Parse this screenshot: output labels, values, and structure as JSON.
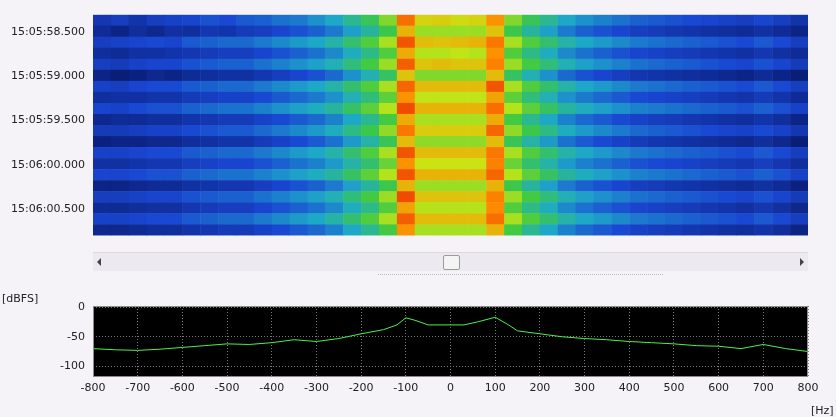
{
  "chart_data": [
    {
      "type": "heatmap",
      "x_bins": [
        -800,
        -760,
        -720,
        -680,
        -640,
        -600,
        -560,
        -520,
        -480,
        -440,
        -400,
        -360,
        -320,
        -280,
        -240,
        -200,
        -160,
        -120,
        -80,
        -40,
        0,
        40,
        80,
        120,
        160,
        200,
        240,
        280,
        320,
        360,
        400,
        440,
        480,
        520,
        560,
        600,
        640,
        680,
        720,
        760,
        800
      ],
      "y_bins": [
        54358.3,
        54358.425,
        54358.55,
        54358.675,
        54358.8,
        54358.925,
        54359.05,
        54359.175,
        54359.3,
        54359.425,
        54359.55,
        54359.675,
        54359.8,
        54359.925,
        54360.05,
        54360.175,
        54360.3,
        54360.425,
        54360.55,
        54360.675,
        54360.8
      ],
      "cells": [
        [
          -72,
          -70,
          -73,
          -70,
          -69,
          -68,
          -66,
          -67,
          -65,
          -64,
          -62,
          -61,
          -58,
          -55,
          -50,
          -45,
          -38,
          -18,
          -30,
          -29,
          -31,
          -30,
          -22,
          -38,
          -45,
          -50,
          -55,
          -58,
          -60,
          -62,
          -64,
          -65,
          -66,
          -67,
          -68,
          -69,
          -70,
          -68,
          -70,
          -73
        ],
        [
          -76,
          -78,
          -75,
          -77,
          -74,
          -75,
          -72,
          -73,
          -71,
          -70,
          -68,
          -66,
          -64,
          -61,
          -56,
          -51,
          -44,
          -26,
          -36,
          -36,
          -36,
          -36,
          -28,
          -44,
          -51,
          -56,
          -61,
          -64,
          -66,
          -68,
          -70,
          -71,
          -72,
          -73,
          -74,
          -75,
          -76,
          -74,
          -76,
          -78
        ],
        [
          -70,
          -69,
          -68,
          -67,
          -68,
          -65,
          -64,
          -63,
          -63,
          -61,
          -59,
          -57,
          -55,
          -52,
          -47,
          -42,
          -35,
          -15,
          -27,
          -28,
          -27,
          -26,
          -19,
          -35,
          -42,
          -47,
          -52,
          -55,
          -57,
          -59,
          -61,
          -62,
          -63,
          -64,
          -65,
          -66,
          -67,
          -65,
          -67,
          -70
        ],
        [
          -75,
          -76,
          -74,
          -74,
          -73,
          -72,
          -71,
          -70,
          -70,
          -68,
          -66,
          -64,
          -62,
          -59,
          -54,
          -49,
          -42,
          -25,
          -34,
          -34,
          -33,
          -34,
          -22,
          -42,
          -49,
          -54,
          -59,
          -62,
          -64,
          -66,
          -68,
          -69,
          -70,
          -71,
          -72,
          -73,
          -74,
          -72,
          -74,
          -76
        ],
        [
          -70,
          -71,
          -69,
          -68,
          -68,
          -66,
          -65,
          -64,
          -64,
          -62,
          -60,
          -58,
          -56,
          -53,
          -48,
          -43,
          -36,
          -16,
          -28,
          -27,
          -28,
          -28,
          -20,
          -36,
          -43,
          -48,
          -53,
          -56,
          -58,
          -60,
          -62,
          -63,
          -64,
          -65,
          -66,
          -67,
          -68,
          -66,
          -68,
          -71
        ],
        [
          -78,
          -80,
          -79,
          -77,
          -78,
          -76,
          -75,
          -74,
          -74,
          -72,
          -70,
          -68,
          -66,
          -63,
          -58,
          -53,
          -46,
          -28,
          -38,
          -38,
          -38,
          -38,
          -27,
          -46,
          -53,
          -58,
          -63,
          -66,
          -68,
          -70,
          -72,
          -73,
          -74,
          -75,
          -76,
          -77,
          -78,
          -76,
          -78,
          -80
        ],
        [
          -69,
          -70,
          -68,
          -67,
          -67,
          -65,
          -64,
          -63,
          -63,
          -61,
          -59,
          -57,
          -55,
          -52,
          -47,
          -42,
          -35,
          -17,
          -27,
          -27,
          -27,
          -27,
          -15,
          -35,
          -42,
          -47,
          -52,
          -55,
          -57,
          -59,
          -61,
          -62,
          -63,
          -64,
          -65,
          -66,
          -67,
          -65,
          -67,
          -70
        ],
        [
          -75,
          -74,
          -74,
          -73,
          -73,
          -71,
          -70,
          -69,
          -69,
          -67,
          -65,
          -63,
          -61,
          -58,
          -53,
          -48,
          -41,
          -22,
          -33,
          -33,
          -33,
          -33,
          -24,
          -41,
          -48,
          -53,
          -58,
          -61,
          -63,
          -65,
          -67,
          -68,
          -69,
          -70,
          -71,
          -72,
          -73,
          -71,
          -73,
          -76
        ],
        [
          -68,
          -69,
          -67,
          -66,
          -66,
          -64,
          -63,
          -62,
          -62,
          -60,
          -58,
          -56,
          -54,
          -51,
          -46,
          -41,
          -34,
          -14,
          -26,
          -26,
          -26,
          -26,
          -18,
          -34,
          -41,
          -46,
          -51,
          -54,
          -56,
          -58,
          -60,
          -61,
          -62,
          -63,
          -64,
          -65,
          -66,
          -64,
          -66,
          -69
        ],
        [
          -77,
          -76,
          -76,
          -75,
          -75,
          -73,
          -72,
          -71,
          -71,
          -69,
          -67,
          -65,
          -63,
          -60,
          -55,
          -50,
          -43,
          -25,
          -35,
          -35,
          -35,
          -35,
          -25,
          -43,
          -50,
          -55,
          -60,
          -63,
          -65,
          -67,
          -69,
          -70,
          -71,
          -72,
          -73,
          -74,
          -75,
          -73,
          -75,
          -78
        ],
        [
          -71,
          -71,
          -70,
          -69,
          -69,
          -67,
          -66,
          -65,
          -65,
          -63,
          -61,
          -59,
          -57,
          -54,
          -49,
          -44,
          -37,
          -19,
          -29,
          -29,
          -29,
          -29,
          -17,
          -37,
          -44,
          -49,
          -54,
          -57,
          -59,
          -61,
          -63,
          -64,
          -65,
          -66,
          -67,
          -68,
          -69,
          -67,
          -69,
          -72
        ],
        [
          -79,
          -78,
          -78,
          -77,
          -77,
          -75,
          -74,
          -73,
          -73,
          -71,
          -69,
          -67,
          -65,
          -62,
          -57,
          -52,
          -45,
          -27,
          -37,
          -37,
          -37,
          -37,
          -27,
          -45,
          -52,
          -57,
          -62,
          -65,
          -67,
          -69,
          -71,
          -72,
          -73,
          -74,
          -75,
          -76,
          -77,
          -75,
          -77,
          -80
        ],
        [
          -69,
          -69,
          -68,
          -67,
          -67,
          -65,
          -64,
          -63,
          -63,
          -61,
          -59,
          -57,
          -55,
          -52,
          -47,
          -42,
          -35,
          -15,
          -27,
          -27,
          -27,
          -27,
          -19,
          -35,
          -42,
          -47,
          -52,
          -55,
          -57,
          -59,
          -61,
          -62,
          -63,
          -64,
          -65,
          -66,
          -67,
          -65,
          -67,
          -70
        ],
        [
          -74,
          -74,
          -73,
          -72,
          -72,
          -70,
          -69,
          -68,
          -68,
          -66,
          -64,
          -62,
          -60,
          -57,
          -52,
          -47,
          -40,
          -22,
          -32,
          -32,
          -32,
          -32,
          -20,
          -40,
          -47,
          -52,
          -57,
          -60,
          -62,
          -64,
          -66,
          -67,
          -68,
          -69,
          -70,
          -71,
          -72,
          -70,
          -72,
          -75
        ],
        [
          -68,
          -68,
          -67,
          -66,
          -66,
          -64,
          -63,
          -62,
          -62,
          -60,
          -58,
          -56,
          -54,
          -51,
          -46,
          -41,
          -34,
          -15,
          -26,
          -26,
          -26,
          -26,
          -17,
          -34,
          -41,
          -46,
          -51,
          -54,
          -56,
          -58,
          -60,
          -61,
          -62,
          -63,
          -64,
          -65,
          -66,
          -64,
          -66,
          -69
        ],
        [
          -78,
          -78,
          -77,
          -76,
          -76,
          -74,
          -73,
          -72,
          -72,
          -70,
          -68,
          -66,
          -64,
          -61,
          -56,
          -51,
          -44,
          -26,
          -36,
          -36,
          -36,
          -36,
          -26,
          -44,
          -51,
          -56,
          -61,
          -64,
          -66,
          -68,
          -70,
          -71,
          -72,
          -73,
          -74,
          -75,
          -76,
          -74,
          -76,
          -79
        ],
        [
          -70,
          -70,
          -69,
          -68,
          -68,
          -66,
          -65,
          -64,
          -64,
          -62,
          -60,
          -58,
          -56,
          -53,
          -48,
          -43,
          -36,
          -14,
          -28,
          -28,
          -28,
          -28,
          -20,
          -36,
          -43,
          -48,
          -53,
          -56,
          -58,
          -60,
          -62,
          -63,
          -64,
          -65,
          -66,
          -67,
          -68,
          -66,
          -68,
          -71
        ],
        [
          -76,
          -76,
          -75,
          -74,
          -74,
          -72,
          -71,
          -70,
          -70,
          -68,
          -66,
          -64,
          -62,
          -59,
          -54,
          -49,
          -42,
          -24,
          -34,
          -34,
          -34,
          -34,
          -21,
          -42,
          -49,
          -54,
          -59,
          -62,
          -64,
          -66,
          -68,
          -69,
          -70,
          -71,
          -72,
          -73,
          -74,
          -72,
          -74,
          -77
        ],
        [
          -69,
          -69,
          -68,
          -67,
          -67,
          -65,
          -64,
          -63,
          -63,
          -61,
          -59,
          -57,
          -55,
          -52,
          -47,
          -42,
          -35,
          -16,
          -27,
          -27,
          -27,
          -27,
          -18,
          -35,
          -42,
          -47,
          -52,
          -55,
          -57,
          -59,
          -61,
          -62,
          -63,
          -64,
          -65,
          -66,
          -67,
          -65,
          -67,
          -70
        ],
        [
          -77,
          -77,
          -76,
          -75,
          -75,
          -73,
          -72,
          -71,
          -71,
          -69,
          -67,
          -65,
          -63,
          -60,
          -55,
          -50,
          -43,
          -22,
          -35,
          -35,
          -35,
          -35,
          -26,
          -43,
          -50,
          -55,
          -60,
          -63,
          -65,
          -67,
          -69,
          -70,
          -71,
          -72,
          -73,
          -74,
          -75,
          -73,
          -75,
          -78
        ]
      ],
      "color_range": [
        -80,
        -10
      ],
      "xlim": [
        -800,
        800
      ],
      "ylim": [
        54358.3,
        54360.8
      ],
      "yticks": [
        {
          "value": 54358.5,
          "label": "15:05:58.500"
        },
        {
          "value": 54359,
          "label": "15:05:59.000"
        },
        {
          "value": 54359.5,
          "label": "15:05:59.500"
        },
        {
          "value": 54360,
          "label": "15:06:00.000"
        },
        {
          "value": 54360.5,
          "label": "15:06:00.500"
        }
      ],
      "tick_labels": "y",
      "grid": false
    },
    {
      "type": "line",
      "x": [
        -800,
        -750,
        -700,
        -650,
        -600,
        -550,
        -500,
        -450,
        -400,
        -350,
        -300,
        -250,
        -200,
        -150,
        -120,
        -100,
        -80,
        -50,
        0,
        30,
        60,
        100,
        130,
        150,
        200,
        250,
        300,
        350,
        400,
        450,
        500,
        550,
        600,
        650,
        700,
        750,
        800
      ],
      "values": [
        -70,
        -72,
        -73,
        -71,
        -68,
        -65,
        -62,
        -63,
        -60,
        -55,
        -58,
        -53,
        -45,
        -38,
        -30,
        -18,
        -22,
        -30,
        -30,
        -30,
        -25,
        -17,
        -30,
        -40,
        -45,
        -50,
        -53,
        -55,
        -58,
        -60,
        -62,
        -65,
        -66,
        -70,
        -63,
        -70,
        -75
      ],
      "color": "#4cf04c",
      "xlim": [
        -800,
        800
      ],
      "xticks": [
        -800,
        -700,
        -600,
        -500,
        -400,
        -300,
        -200,
        -100,
        0,
        100,
        200,
        300,
        400,
        500,
        600,
        700,
        800
      ],
      "ylim": [
        -118,
        2
      ],
      "yticks": [
        -100,
        -50,
        0
      ],
      "x_label": "[Hz]",
      "y_label": "[dBFS]",
      "grid": true
    }
  ]
}
